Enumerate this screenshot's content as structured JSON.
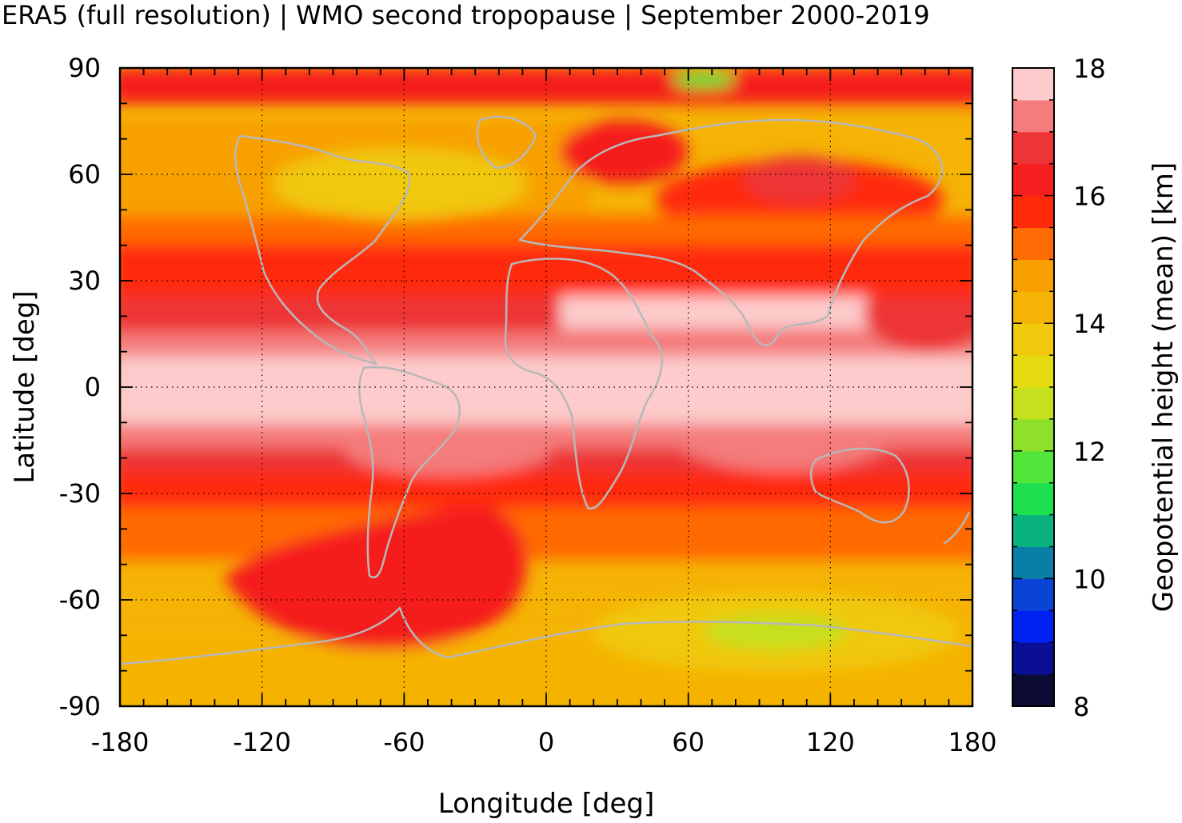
{
  "chart_data": {
    "type": "heatmap",
    "title": "ERA5 (full resolution) | WMO second tropopause | September 2000-2019",
    "xlabel": "Longitude [deg]",
    "ylabel": "Latitude [deg]",
    "xlim": [
      -180,
      180
    ],
    "ylim": [
      -90,
      90
    ],
    "xticks": [
      -180,
      -120,
      -60,
      0,
      60,
      120,
      180
    ],
    "yticks": [
      90,
      60,
      30,
      0,
      -30,
      -60,
      -90
    ],
    "grid": true,
    "colorbar": {
      "label": "Geopotential height (mean) [km]",
      "min": 8,
      "max": 18,
      "ticks": [
        18,
        16,
        14,
        12,
        10,
        8
      ],
      "levels": [
        {
          "lo": 8.0,
          "hi": 8.5,
          "color": "#0b0b33"
        },
        {
          "lo": 8.5,
          "hi": 9.0,
          "color": "#0a0f96"
        },
        {
          "lo": 9.0,
          "hi": 9.5,
          "color": "#0022f0"
        },
        {
          "lo": 9.5,
          "hi": 10.0,
          "color": "#0a44d6"
        },
        {
          "lo": 10.0,
          "hi": 10.5,
          "color": "#0a7fa6"
        },
        {
          "lo": 10.5,
          "hi": 11.0,
          "color": "#0ab27e"
        },
        {
          "lo": 11.0,
          "hi": 11.5,
          "color": "#1de050"
        },
        {
          "lo": 11.5,
          "hi": 12.0,
          "color": "#52e53a"
        },
        {
          "lo": 12.0,
          "hi": 12.5,
          "color": "#8fe02a"
        },
        {
          "lo": 12.5,
          "hi": 13.0,
          "color": "#c5e01c"
        },
        {
          "lo": 13.0,
          "hi": 13.5,
          "color": "#e6db10"
        },
        {
          "lo": 13.5,
          "hi": 14.0,
          "color": "#f0c80c"
        },
        {
          "lo": 14.0,
          "hi": 14.5,
          "color": "#f5b305"
        },
        {
          "lo": 14.5,
          "hi": 15.0,
          "color": "#f8a000"
        },
        {
          "lo": 15.0,
          "hi": 15.5,
          "color": "#ff6a05"
        },
        {
          "lo": 15.5,
          "hi": 16.0,
          "color": "#ff2a0a"
        },
        {
          "lo": 16.0,
          "hi": 16.5,
          "color": "#f51f1f"
        },
        {
          "lo": 16.5,
          "hi": 17.0,
          "color": "#ed3535"
        },
        {
          "lo": 17.0,
          "hi": 17.5,
          "color": "#f47c7c"
        },
        {
          "lo": 17.5,
          "hi": 18.0,
          "color": "#fdcbcb"
        }
      ]
    },
    "zonal_mean_km": [
      {
        "lat": -90,
        "value": 14.3
      },
      {
        "lat": -80,
        "value": 14.1
      },
      {
        "lat": -70,
        "value": 14.6
      },
      {
        "lat": -60,
        "value": 15.4
      },
      {
        "lat": -50,
        "value": 15.8
      },
      {
        "lat": -40,
        "value": 15.7
      },
      {
        "lat": -30,
        "value": 16.4
      },
      {
        "lat": -20,
        "value": 17.0
      },
      {
        "lat": -10,
        "value": 17.4
      },
      {
        "lat": 0,
        "value": 17.8
      },
      {
        "lat": 10,
        "value": 17.6
      },
      {
        "lat": 20,
        "value": 17.0
      },
      {
        "lat": 30,
        "value": 16.3
      },
      {
        "lat": 40,
        "value": 15.6
      },
      {
        "lat": 50,
        "value": 15.1
      },
      {
        "lat": 60,
        "value": 14.7
      },
      {
        "lat": 70,
        "value": 14.9
      },
      {
        "lat": 80,
        "value": 15.3
      },
      {
        "lat": 90,
        "value": 15.5
      }
    ],
    "colors": {
      "coastline": "#b8b8b8",
      "background": "#f5b305"
    }
  }
}
